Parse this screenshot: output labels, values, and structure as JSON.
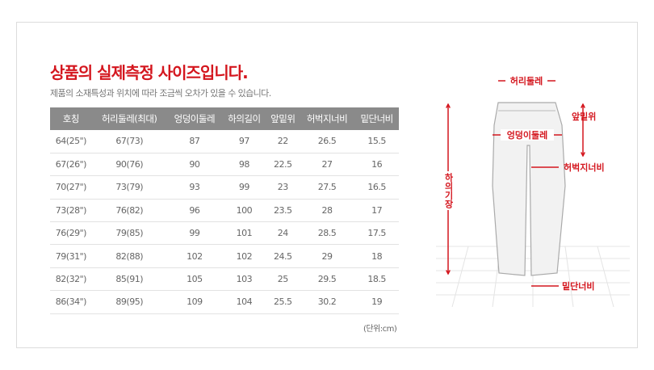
{
  "title": "상품의 실제측정 사이즈입니다.",
  "subtitle": "제품의 소재특성과 위치에 따라 조금씩 오차가 있을 수 있습니다.",
  "table": {
    "headers": [
      "호칭",
      "허리둘레(최대)",
      "엉덩이둘레",
      "하의길이",
      "앞밑위",
      "허벅지너비",
      "밑단너비"
    ],
    "rows": [
      [
        "64(25\")",
        "67(73)",
        "87",
        "97",
        "22",
        "26.5",
        "15.5"
      ],
      [
        "67(26\")",
        "90(76)",
        "90",
        "98",
        "22.5",
        "27",
        "16"
      ],
      [
        "70(27\")",
        "73(79)",
        "93",
        "99",
        "23",
        "27.5",
        "16.5"
      ],
      [
        "73(28\")",
        "76(82)",
        "96",
        "100",
        "23.5",
        "28",
        "17"
      ],
      [
        "76(29\")",
        "79(85)",
        "99",
        "101",
        "24",
        "28.5",
        "17.5"
      ],
      [
        "79(31\")",
        "82(88)",
        "102",
        "102",
        "24.5",
        "29",
        "18"
      ],
      [
        "82(32\")",
        "85(91)",
        "105",
        "103",
        "25",
        "29.5",
        "18.5"
      ],
      [
        "86(34\")",
        "89(95)",
        "109",
        "104",
        "25.5",
        "30.2",
        "19"
      ]
    ]
  },
  "unit": "(단위:cm)",
  "diagram": {
    "waist": "허리둘레",
    "rise": "앞밑위",
    "hip": "엉덩이둘레",
    "thigh": "허벅지너비",
    "length": "하의기장",
    "hem": "밑단너비"
  },
  "accent": "#d4161e"
}
